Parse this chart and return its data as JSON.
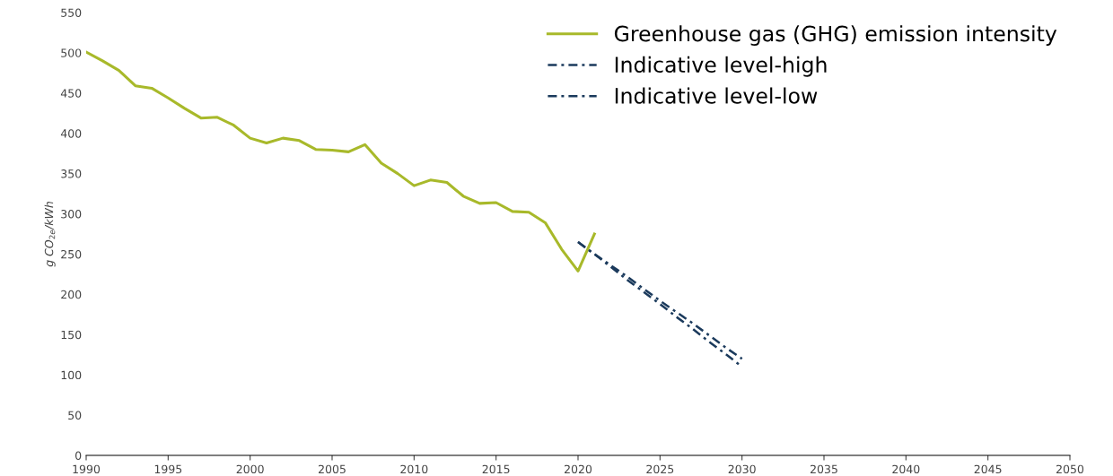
{
  "chart_data": {
    "type": "line",
    "ylabel": "g CO$_{2e}$/kWh",
    "x": [
      1990,
      1991,
      1992,
      1993,
      1994,
      1995,
      1996,
      1997,
      1998,
      1999,
      2000,
      2001,
      2002,
      2003,
      2004,
      2005,
      2006,
      2007,
      2008,
      2009,
      2010,
      2011,
      2012,
      2013,
      2014,
      2015,
      2016,
      2017,
      2018,
      2019,
      2020,
      2021,
      2022,
      2023,
      2024,
      2025,
      2026,
      2027,
      2028,
      2029,
      2030
    ],
    "series": [
      {
        "name": "Greenhouse gas (GHG) emission intensity",
        "color": "#a8b92a",
        "line_style": "solid",
        "values": [
          501,
          490,
          478,
          459,
          456,
          444,
          431,
          419,
          420,
          410,
          394,
          388,
          394,
          391,
          380,
          379,
          377,
          386,
          363,
          350,
          335,
          342,
          339,
          322,
          313,
          314,
          303,
          302,
          289,
          256,
          229,
          275,
          null,
          null,
          null,
          null,
          null,
          null,
          null,
          null,
          null
        ]
      },
      {
        "name": "Indicative level-high",
        "color": "#1b3a5c",
        "line_style": "dashed",
        "values": [
          null,
          null,
          null,
          null,
          null,
          null,
          null,
          null,
          null,
          null,
          null,
          null,
          null,
          null,
          null,
          null,
          null,
          null,
          null,
          null,
          null,
          null,
          null,
          null,
          null,
          null,
          null,
          null,
          null,
          null,
          265,
          250,
          236,
          222,
          207,
          192,
          178,
          164,
          149,
          134,
          120
        ]
      },
      {
        "name": "Indicative level-low",
        "color": "#1b3a5c",
        "line_style": "dashed",
        "values": [
          null,
          null,
          null,
          null,
          null,
          null,
          null,
          null,
          null,
          null,
          null,
          null,
          null,
          null,
          null,
          null,
          null,
          null,
          null,
          null,
          null,
          null,
          null,
          null,
          null,
          null,
          null,
          null,
          null,
          null,
          265,
          250,
          234,
          218,
          203,
          188,
          172,
          157,
          141,
          126,
          110
        ]
      }
    ],
    "xlim": [
      1990,
      2050
    ],
    "xticks": [
      1990,
      1995,
      2000,
      2005,
      2010,
      2015,
      2020,
      2025,
      2030,
      2035,
      2040,
      2045,
      2050
    ],
    "ylim": [
      0,
      550
    ],
    "yticks": [
      0,
      50,
      100,
      150,
      200,
      250,
      300,
      350,
      400,
      450,
      500,
      550
    ],
    "grid": false,
    "legend": "top right",
    "marker": "none"
  }
}
